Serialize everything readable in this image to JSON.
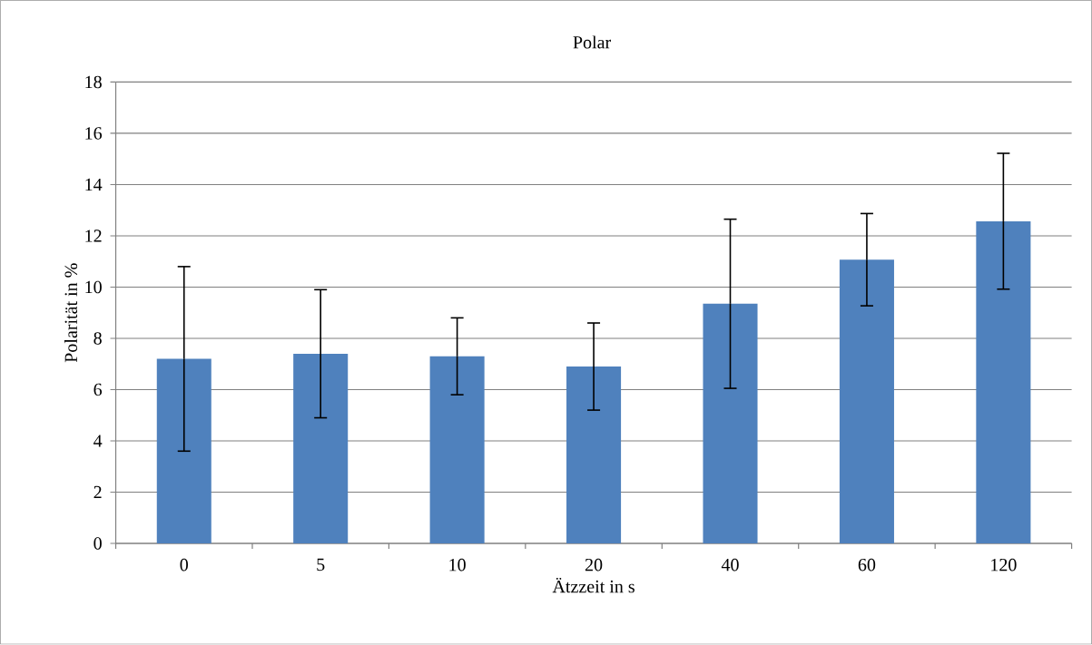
{
  "chart_data": {
    "type": "bar",
    "title": "Polar",
    "xlabel": "Ätzzeit in s",
    "ylabel": "Polarität in %",
    "categories": [
      "0",
      "5",
      "10",
      "20",
      "40",
      "60",
      "120"
    ],
    "values": [
      7.2,
      7.4,
      7.3,
      6.9,
      9.35,
      11.07,
      12.57
    ],
    "errors": [
      3.6,
      2.5,
      1.5,
      1.7,
      3.3,
      1.8,
      2.65
    ],
    "color": "#4f81bd",
    "ylim": [
      0,
      18
    ],
    "yticks": [
      0,
      2,
      4,
      6,
      8,
      10,
      12,
      14,
      16,
      18
    ],
    "grid": "y"
  }
}
